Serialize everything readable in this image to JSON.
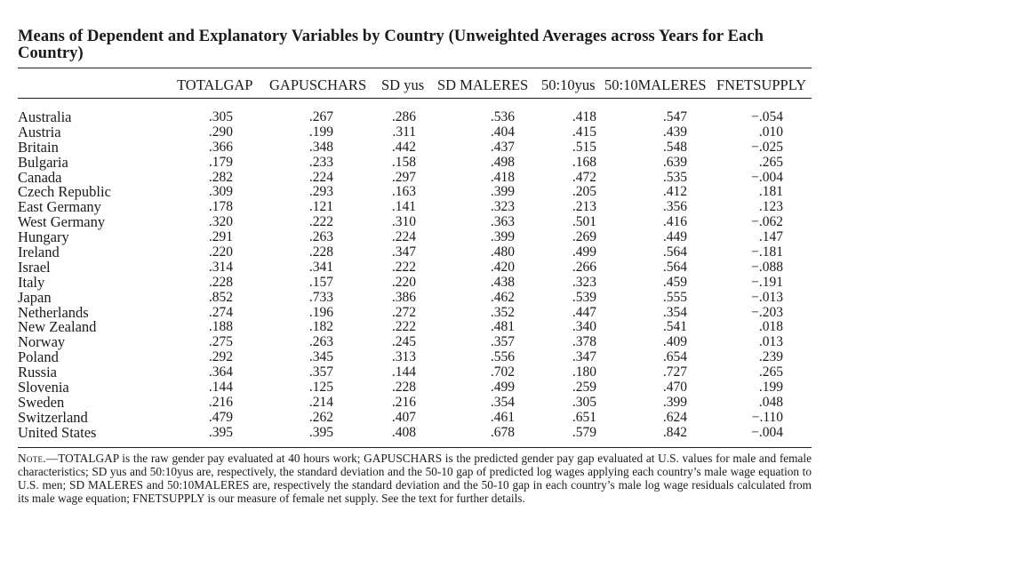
{
  "table": {
    "title": "Means of Dependent and Explanatory Variables by Country (Unweighted Averages across Years for Each Country)",
    "columns": [
      "TOTALGAP",
      "GAPUSCHARS",
      "SD yus",
      "SD MALERES",
      "50:10yus",
      "50:10MALERES",
      "FNETSUPPLY"
    ],
    "rows": [
      {
        "country": "Australia",
        "values": [
          ".305",
          ".267",
          ".286",
          ".536",
          ".418",
          ".547",
          "−.054"
        ]
      },
      {
        "country": "Austria",
        "values": [
          ".290",
          ".199",
          ".311",
          ".404",
          ".415",
          ".439",
          ".010"
        ]
      },
      {
        "country": "Britain",
        "values": [
          ".366",
          ".348",
          ".442",
          ".437",
          ".515",
          ".548",
          "−.025"
        ]
      },
      {
        "country": "Bulgaria",
        "values": [
          ".179",
          ".233",
          ".158",
          ".498",
          ".168",
          ".639",
          ".265"
        ]
      },
      {
        "country": "Canada",
        "values": [
          ".282",
          ".224",
          ".297",
          ".418",
          ".472",
          ".535",
          "−.004"
        ]
      },
      {
        "country": "Czech Republic",
        "values": [
          ".309",
          ".293",
          ".163",
          ".399",
          ".205",
          ".412",
          ".181"
        ]
      },
      {
        "country": "East Germany",
        "values": [
          ".178",
          ".121",
          ".141",
          ".323",
          ".213",
          ".356",
          ".123"
        ]
      },
      {
        "country": "West Germany",
        "values": [
          ".320",
          ".222",
          ".310",
          ".363",
          ".501",
          ".416",
          "−.062"
        ]
      },
      {
        "country": "Hungary",
        "values": [
          ".291",
          ".263",
          ".224",
          ".399",
          ".269",
          ".449",
          ".147"
        ]
      },
      {
        "country": "Ireland",
        "values": [
          ".220",
          ".228",
          ".347",
          ".480",
          ".499",
          ".564",
          "−.181"
        ]
      },
      {
        "country": "Israel",
        "values": [
          ".314",
          ".341",
          ".222",
          ".420",
          ".266",
          ".564",
          "−.088"
        ]
      },
      {
        "country": "Italy",
        "values": [
          ".228",
          ".157",
          ".220",
          ".438",
          ".323",
          ".459",
          "−.191"
        ]
      },
      {
        "country": "Japan",
        "values": [
          ".852",
          ".733",
          ".386",
          ".462",
          ".539",
          ".555",
          "−.013"
        ]
      },
      {
        "country": "Netherlands",
        "values": [
          ".274",
          ".196",
          ".272",
          ".352",
          ".447",
          ".354",
          "−.203"
        ]
      },
      {
        "country": "New Zealand",
        "values": [
          ".188",
          ".182",
          ".222",
          ".481",
          ".340",
          ".541",
          ".018"
        ]
      },
      {
        "country": "Norway",
        "values": [
          ".275",
          ".263",
          ".245",
          ".357",
          ".378",
          ".409",
          ".013"
        ]
      },
      {
        "country": "Poland",
        "values": [
          ".292",
          ".345",
          ".313",
          ".556",
          ".347",
          ".654",
          ".239"
        ]
      },
      {
        "country": "Russia",
        "values": [
          ".364",
          ".357",
          ".144",
          ".702",
          ".180",
          ".727",
          ".265"
        ]
      },
      {
        "country": "Slovenia",
        "values": [
          ".144",
          ".125",
          ".228",
          ".499",
          ".259",
          ".470",
          ".199"
        ]
      },
      {
        "country": "Sweden",
        "values": [
          ".216",
          ".214",
          ".216",
          ".354",
          ".305",
          ".399",
          ".048"
        ]
      },
      {
        "country": "Switzerland",
        "values": [
          ".479",
          ".262",
          ".407",
          ".461",
          ".651",
          ".624",
          "−.110"
        ]
      },
      {
        "country": "United States",
        "values": [
          ".395",
          ".395",
          ".408",
          ".678",
          ".579",
          ".842",
          "−.004"
        ]
      }
    ],
    "note_label": "Note.",
    "note_text": "—TOTALGAP is the raw gender pay evaluated at 40 hours work; GAPUSCHARS is the predicted gender pay gap evaluated at U.S. values for male and female characteristics; SD yus and 50:10yus are, respectively, the standard deviation and the 50-10 gap of predicted log wages applying each country’s male wage equation to U.S. men; SD MALERES and 50:10MALERES are, respectively the standard deviation and the 50-10 gap in each country’s male log wage residuals calculated from its male wage equation; FNETSUPPLY is our measure of female net supply. See the text for further details."
  }
}
